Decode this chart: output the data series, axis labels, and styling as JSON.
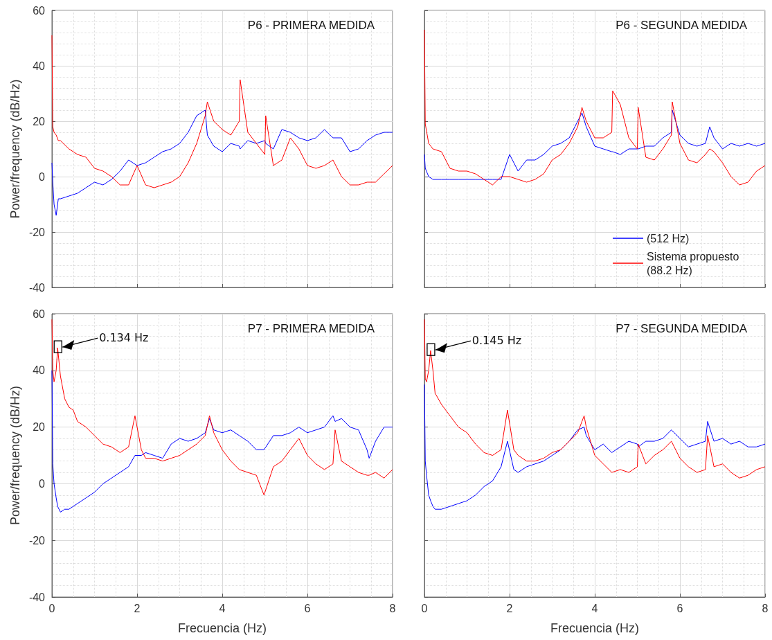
{
  "chart_data": [
    {
      "type": "line",
      "title": "P6 - PRIMERA MEDIDA",
      "ylabel": "Power/frequency (dB/Hz)",
      "x": [
        0,
        0.02,
        0.05,
        0.1,
        0.15,
        0.2,
        0.4,
        0.6,
        0.8,
        1,
        1.2,
        1.4,
        1.6,
        1.8,
        2,
        2.2,
        2.4,
        2.6,
        2.8,
        3,
        3.2,
        3.4,
        3.6,
        3.65,
        3.8,
        4,
        4.2,
        4.4,
        4.42,
        4.6,
        4.8,
        5,
        5.02,
        5.2,
        5.4,
        5.6,
        5.8,
        6,
        6.2,
        6.4,
        6.6,
        6.8,
        7,
        7.2,
        7.4,
        7.6,
        7.8,
        8
      ],
      "series": [
        {
          "color": "#0000ff",
          "values": [
            5,
            -2,
            -10,
            -14,
            -8,
            -8,
            -7,
            -6,
            -4,
            -2,
            -3,
            -1,
            2,
            6,
            4,
            5,
            7,
            9,
            10,
            12,
            16,
            22,
            24,
            15,
            11,
            9,
            12,
            11,
            10,
            13,
            12,
            13,
            12,
            10,
            17,
            16,
            14,
            13,
            14,
            17,
            14,
            14,
            9,
            10,
            13,
            15,
            16,
            16
          ]
        },
        {
          "color": "#ff0000",
          "values": [
            51,
            18,
            16,
            15,
            13,
            13,
            10,
            8,
            7,
            3,
            2,
            0,
            -3,
            -3,
            4,
            -3,
            -4,
            -3,
            -2,
            0,
            5,
            12,
            22,
            27,
            20,
            17,
            15,
            20,
            35,
            16,
            12,
            8,
            22,
            4,
            6,
            14,
            10,
            4,
            3,
            4,
            6,
            0,
            -3,
            -3,
            -2,
            -2,
            1,
            4
          ]
        }
      ],
      "xlim": [
        0,
        8
      ],
      "xticks": [
        0,
        2,
        4,
        6,
        8
      ],
      "ylim": [
        -40,
        60
      ],
      "yticks": [
        -40,
        -20,
        0,
        20,
        40,
        60
      ],
      "grid": true,
      "legend": false,
      "tick_labels": "y",
      "marker": "none",
      "line_style": "solid"
    },
    {
      "type": "line",
      "title": "P6 - SEGUNDA MEDIDA",
      "x": [
        0,
        0.02,
        0.1,
        0.2,
        0.4,
        0.6,
        0.8,
        1,
        1.2,
        1.4,
        1.6,
        1.8,
        2,
        2.2,
        2.4,
        2.6,
        2.8,
        3,
        3.2,
        3.4,
        3.6,
        3.7,
        3.8,
        4,
        4.2,
        4.4,
        4.42,
        4.6,
        4.8,
        5,
        5.02,
        5.2,
        5.4,
        5.6,
        5.8,
        5.82,
        6,
        6.2,
        6.4,
        6.6,
        6.7,
        6.8,
        7,
        7.2,
        7.4,
        7.6,
        7.8,
        8
      ],
      "series": [
        {
          "name": "(512 Hz)",
          "color": "#0000ff",
          "values": [
            8,
            3,
            0,
            -1,
            -1,
            -1,
            -1,
            -1,
            -1,
            -1,
            -1,
            -1,
            8,
            2,
            6,
            6,
            8,
            11,
            12,
            14,
            20,
            23,
            18,
            11,
            10,
            9,
            9,
            8,
            10,
            10,
            10,
            11,
            11,
            14,
            16,
            24,
            15,
            12,
            11,
            12,
            18,
            14,
            10,
            12,
            11,
            12,
            11,
            12
          ]
        },
        {
          "name": "Sistema propuesto (88.2 Hz)",
          "color": "#ff0000",
          "values": [
            53,
            19,
            12,
            10,
            9,
            3,
            2,
            2,
            1,
            -1,
            -3,
            0,
            0,
            -1,
            -2,
            -1,
            1,
            6,
            8,
            12,
            18,
            25,
            20,
            14,
            14,
            16,
            31,
            26,
            14,
            10,
            25,
            7,
            6,
            10,
            15,
            27,
            12,
            6,
            5,
            8,
            10,
            9,
            5,
            0,
            -3,
            -2,
            2,
            4
          ]
        }
      ],
      "xlim": [
        0,
        8
      ],
      "xticks": [
        0,
        2,
        4,
        6,
        8
      ],
      "ylim": [
        -40,
        60
      ],
      "yticks": [
        -40,
        -20,
        0,
        20,
        40,
        60
      ],
      "grid": true,
      "legend": "bottom right",
      "tick_labels": false,
      "marker": "none",
      "line_style": "solid"
    },
    {
      "type": "line",
      "title": "P7 - PRIMERA MEDIDA",
      "xlabel": "Frecuencia (Hz)",
      "ylabel": "Power/frequency (dB/Hz)",
      "annotations": [
        {
          "text": "0.134 Hz",
          "x": 0.134,
          "y": 48
        }
      ],
      "x": [
        0,
        0.02,
        0.05,
        0.1,
        0.134,
        0.2,
        0.3,
        0.4,
        0.5,
        0.6,
        0.8,
        1,
        1.2,
        1.4,
        1.6,
        1.8,
        1.95,
        2.1,
        2.2,
        2.4,
        2.6,
        2.8,
        3,
        3.2,
        3.4,
        3.6,
        3.7,
        3.8,
        4,
        4.2,
        4.4,
        4.6,
        4.8,
        4.98,
        5.2,
        5.4,
        5.6,
        5.8,
        6,
        6.2,
        6.4,
        6.6,
        6.65,
        6.8,
        7,
        7.2,
        7.4,
        7.45,
        7.6,
        7.8,
        8
      ],
      "series": [
        {
          "color": "#0000ff",
          "values": [
            40,
            7,
            0,
            -5,
            -8,
            -10,
            -9,
            -9,
            -8,
            -7,
            -5,
            -3,
            0,
            2,
            4,
            6,
            10,
            10,
            11,
            10,
            9,
            14,
            16,
            15,
            16,
            18,
            23,
            19,
            18,
            19,
            17,
            15,
            12,
            12,
            17,
            17,
            18,
            20,
            18,
            19,
            20,
            24,
            22,
            23,
            20,
            19,
            12,
            9,
            15,
            20,
            20
          ]
        },
        {
          "color": "#ff0000",
          "values": [
            58,
            40,
            36,
            40,
            48,
            38,
            30,
            27,
            26,
            22,
            20,
            17,
            14,
            13,
            11,
            13,
            24,
            12,
            9,
            9,
            8,
            9,
            10,
            12,
            14,
            17,
            24,
            18,
            12,
            8,
            5,
            4,
            3,
            -4,
            6,
            8,
            12,
            16,
            10,
            7,
            5,
            7,
            19,
            8,
            6,
            4,
            3,
            3,
            4,
            2,
            5
          ]
        }
      ],
      "xlim": [
        0,
        8
      ],
      "xticks": [
        0,
        2,
        4,
        6,
        8
      ],
      "ylim": [
        -40,
        60
      ],
      "yticks": [
        -40,
        -20,
        0,
        20,
        40,
        60
      ],
      "grid": true,
      "legend": false,
      "marker": "none",
      "line_style": "solid"
    },
    {
      "type": "line",
      "title": "P7 - SEGUNDA MEDIDA",
      "xlabel": "Frecuencia (Hz)",
      "annotations": [
        {
          "text": "0.145 Hz",
          "x": 0.145,
          "y": 47
        }
      ],
      "x": [
        0,
        0.02,
        0.05,
        0.1,
        0.145,
        0.2,
        0.25,
        0.4,
        0.6,
        0.8,
        1,
        1.2,
        1.4,
        1.6,
        1.8,
        1.95,
        2.1,
        2.2,
        2.4,
        2.6,
        2.8,
        3,
        3.2,
        3.4,
        3.6,
        3.75,
        3.8,
        4,
        4.2,
        4.4,
        4.6,
        4.8,
        5,
        5.02,
        5.2,
        5.4,
        5.6,
        5.8,
        6,
        6.2,
        6.4,
        6.6,
        6.65,
        6.8,
        7,
        7.2,
        7.4,
        7.6,
        7.8,
        8
      ],
      "series": [
        {
          "color": "#0000ff",
          "values": [
            35,
            8,
            3,
            -4,
            -6,
            -8,
            -9,
            -9,
            -8,
            -7,
            -6,
            -4,
            -1,
            1,
            6,
            15,
            5,
            4,
            6,
            7,
            8,
            10,
            12,
            15,
            19,
            20,
            17,
            12,
            14,
            11,
            13,
            15,
            14,
            13,
            15,
            15,
            16,
            19,
            16,
            13,
            14,
            15,
            22,
            15,
            16,
            14,
            15,
            13,
            13,
            14
          ]
        },
        {
          "color": "#ff0000",
          "values": [
            58,
            37,
            36,
            40,
            47,
            40,
            32,
            28,
            24,
            20,
            18,
            14,
            11,
            10,
            12,
            26,
            12,
            10,
            8,
            8,
            9,
            11,
            12,
            15,
            18,
            24,
            20,
            10,
            7,
            4,
            5,
            4,
            6,
            14,
            7,
            10,
            12,
            15,
            9,
            6,
            4,
            5,
            17,
            6,
            7,
            4,
            2,
            3,
            5,
            6
          ]
        }
      ],
      "xlim": [
        0,
        8
      ],
      "xticks": [
        0,
        2,
        4,
        6,
        8
      ],
      "ylim": [
        -40,
        60
      ],
      "yticks": [
        -40,
        -20,
        0,
        20,
        40,
        60
      ],
      "grid": true,
      "legend": false,
      "tick_labels": "x",
      "marker": "none",
      "line_style": "solid"
    }
  ]
}
